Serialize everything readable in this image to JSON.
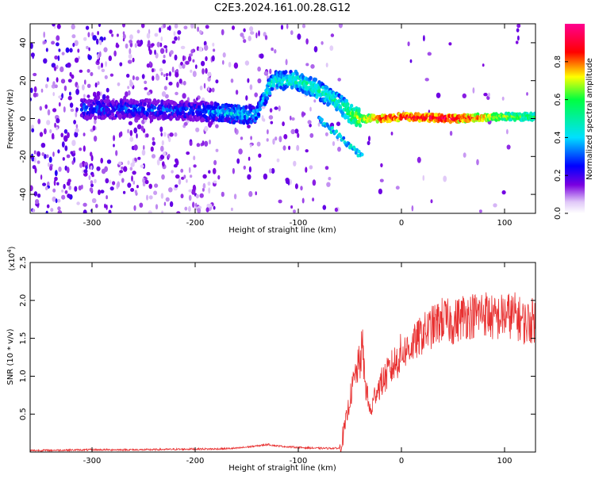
{
  "title": "C2E3.2024.161.00.28.G12",
  "chart_data": [
    {
      "type": "heatmap",
      "xlabel": "Height of straight line (km)",
      "ylabel": "Frequency (Hz)",
      "xlim": [
        -360,
        130
      ],
      "ylim": [
        -50,
        50
      ],
      "x_ticks": [
        -300,
        -200,
        -100,
        0,
        100
      ],
      "y_ticks": [
        -40,
        -20,
        0,
        20,
        40
      ],
      "colorbar": {
        "label": "Normalized spectral amplitude",
        "range": [
          0,
          1
        ],
        "ticks": [
          0.0,
          0.2,
          0.4,
          0.6,
          0.8
        ],
        "colors": [
          "#ffffff",
          "#e0c8f8",
          "#7a00e0",
          "#0000ff",
          "#00e0ff",
          "#00ff40",
          "#ffff00",
          "#ff0000",
          "#ff0090"
        ]
      },
      "ridge": [
        {
          "x": -300,
          "freq": 5,
          "amp": 0.3
        },
        {
          "x": -250,
          "freq": 5,
          "amp": 0.3
        },
        {
          "x": -200,
          "freq": 4,
          "amp": 0.3
        },
        {
          "x": -170,
          "freq": 3,
          "amp": 0.4
        },
        {
          "x": -140,
          "freq": 2,
          "amp": 0.4
        },
        {
          "x": -125,
          "freq": 20,
          "amp": 0.45
        },
        {
          "x": -100,
          "freq": 20,
          "amp": 0.5
        },
        {
          "x": -80,
          "freq": 15,
          "amp": 0.5
        },
        {
          "x": -60,
          "freq": 8,
          "amp": 0.5
        },
        {
          "x": -50,
          "freq": 3,
          "amp": 0.6
        },
        {
          "x": -40,
          "freq": 0,
          "amp": 0.7
        },
        {
          "x": -20,
          "freq": 0,
          "amp": 0.9
        },
        {
          "x": 0,
          "freq": 1,
          "amp": 0.9
        },
        {
          "x": 50,
          "freq": 0,
          "amp": 0.95
        },
        {
          "x": 100,
          "freq": 1,
          "amp": 0.7
        },
        {
          "x": 130,
          "freq": 1,
          "amp": 0.6
        }
      ]
    },
    {
      "type": "line",
      "xlabel": "Height of straight line (km)",
      "ylabel": "SNR (10 * v/v)",
      "y_scale_label": "(x10",
      "y_scale_exponent": "4",
      "xlim": [
        -360,
        130
      ],
      "ylim": [
        0,
        2.5
      ],
      "x_ticks": [
        -300,
        -200,
        -100,
        0,
        100
      ],
      "y_ticks": [
        0.5,
        1.0,
        1.5,
        2.0,
        2.5
      ],
      "color": "#e83030",
      "series": [
        {
          "x": [
            -360,
            -300,
            -250,
            -200,
            -180,
            -160,
            -140,
            -130,
            -120,
            -100,
            -80,
            -60,
            -55,
            -50,
            -45,
            -40,
            -38,
            -35,
            -30,
            -25,
            -20,
            -15,
            -10,
            -5,
            0,
            10,
            20,
            30,
            40,
            50,
            60,
            70,
            80,
            90,
            100,
            110,
            120,
            130
          ],
          "y": [
            0.02,
            0.03,
            0.03,
            0.04,
            0.04,
            0.05,
            0.08,
            0.1,
            0.08,
            0.06,
            0.05,
            0.05,
            0.3,
            0.7,
            1.0,
            1.2,
            1.4,
            0.9,
            0.5,
            0.8,
            0.9,
            1.0,
            1.1,
            1.2,
            1.3,
            1.4,
            1.55,
            1.65,
            1.75,
            1.7,
            1.8,
            1.8,
            1.85,
            1.75,
            1.8,
            1.8,
            1.7,
            1.75
          ]
        }
      ]
    }
  ]
}
